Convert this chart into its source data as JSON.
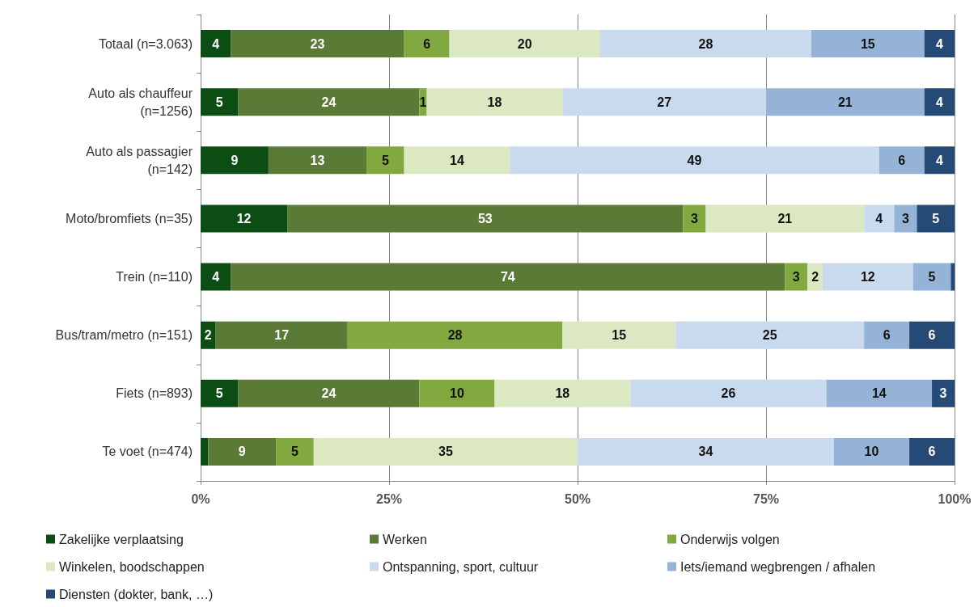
{
  "chart_data": {
    "type": "bar",
    "orientation": "horizontal",
    "stacked": true,
    "categories": [
      "Totaal (n=3.063)",
      "Auto als chauffeur (n=1256)",
      "Auto als passagier (n=142)",
      "Moto/bromfiets (n=35)",
      "Trein (n=110)",
      "Bus/tram/metro (n=151)",
      "Fiets (n=893)",
      "Te voet (n=474)"
    ],
    "series": [
      {
        "name": "Zakelijke verplaatsing",
        "color": "#0b4d12",
        "values": [
          4,
          5,
          9,
          11.5,
          4,
          2,
          5,
          1
        ],
        "value_labels": [
          "4",
          "5",
          "9",
          "12",
          "4",
          "2",
          "5",
          null
        ]
      },
      {
        "name": "Werken",
        "color": "#5a7a35",
        "values": [
          23,
          24,
          13,
          52.5,
          73.5,
          17.5,
          24,
          9
        ],
        "value_labels": [
          "23",
          "24",
          "13",
          "53",
          "74",
          "17",
          "24",
          "9"
        ]
      },
      {
        "name": "Onderwijs volgen",
        "color": "#82a93f",
        "values": [
          6,
          1,
          5,
          3,
          3,
          28.5,
          10,
          5
        ],
        "value_labels": [
          "6",
          "1",
          "5",
          "3",
          "3",
          "28",
          "10",
          "5"
        ]
      },
      {
        "name": "Winkelen, boodschappen",
        "color": "#dbe8c1",
        "values": [
          20,
          18,
          14,
          21,
          2,
          15,
          18,
          35
        ],
        "value_labels": [
          "20",
          "18",
          "14",
          "21",
          "2",
          "15",
          "18",
          "35"
        ]
      },
      {
        "name": "Ontspanning, sport, cultuur",
        "color": "#c9d9ee",
        "values": [
          28,
          27,
          49,
          4,
          12,
          25,
          26,
          34
        ],
        "value_labels": [
          "28",
          "27",
          "49",
          "4",
          "12",
          "25",
          "26",
          "34"
        ]
      },
      {
        "name": "Iets/iemand wegbrengen / afhalen",
        "color": "#95b3d7",
        "values": [
          15,
          21,
          6,
          3,
          5,
          6,
          14,
          10
        ],
        "value_labels": [
          "15",
          "21",
          "6",
          "3",
          "5",
          "6",
          "14",
          "10"
        ]
      },
      {
        "name": "Diensten (dokter, bank, …)",
        "color": "#254a75",
        "values": [
          4,
          4,
          4,
          5,
          0.5,
          6,
          3,
          6
        ],
        "value_labels": [
          "4",
          "4",
          "4",
          "5",
          null,
          "6",
          "3",
          "6"
        ]
      }
    ],
    "xlim": [
      0,
      100
    ],
    "xticks": [
      {
        "value": 0,
        "label": "0%"
      },
      {
        "value": 25,
        "label": "25%"
      },
      {
        "value": 50,
        "label": "50%"
      },
      {
        "value": 75,
        "label": "75%"
      },
      {
        "value": 100,
        "label": "100%"
      }
    ],
    "grid": "x",
    "legend": "bottom"
  }
}
